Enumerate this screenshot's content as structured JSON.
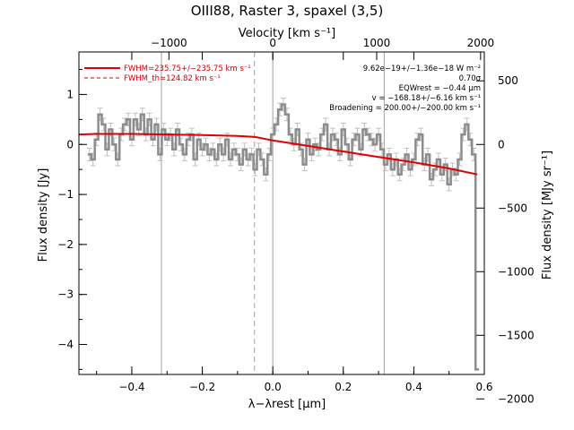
{
  "chart_data": {
    "type": "line",
    "title": "OIII88, Raster 3, spaxel (3,5)",
    "xlabel": "λ−λrest [μm]",
    "x2label": "Velocity [km s⁻¹]",
    "ylabel": "Flux density [Jy]",
    "y2label": "Flux density [MJy sr⁻¹]",
    "xlim": [
      -0.55,
      0.6
    ],
    "ylim": [
      -4.6,
      1.85
    ],
    "x_ticks": [
      "−0.4",
      "−0.2",
      "0.0",
      "0.2",
      "0.4",
      "0.6"
    ],
    "y_ticks": [
      "1",
      "0",
      "−1",
      "−2",
      "−3",
      "−4"
    ],
    "x2_ticks": [
      "−1000",
      "0",
      "1000",
      "2000"
    ],
    "y2_ticks": [
      "500",
      "0",
      "−500",
      "−1000",
      "−1500",
      "−2000"
    ],
    "legend_placement": "top-left",
    "legend": [
      "FWHM=235.75+/−235.75 km s⁻¹",
      "FWHM_th=124.82 km s⁻¹"
    ],
    "annotations": [
      "9.62e−19+/−1.36e−18 W m⁻²",
      "0.70σ",
      "EQWrest = −0.44 μm",
      "v = −168.18+/−6.16 km s⁻¹",
      "Broadening = 200.00+/−200.00 km s⁻¹"
    ],
    "vertical_lines": [
      -0.316,
      0.0,
      0.316
    ],
    "dashed_line": -0.052,
    "series": [
      {
        "name": "spectrum",
        "x": [
          -0.52,
          -0.51,
          -0.5,
          -0.49,
          -0.48,
          -0.47,
          -0.46,
          -0.45,
          -0.44,
          -0.43,
          -0.42,
          -0.41,
          -0.4,
          -0.39,
          -0.38,
          -0.37,
          -0.36,
          -0.35,
          -0.34,
          -0.33,
          -0.32,
          -0.31,
          -0.3,
          -0.29,
          -0.28,
          -0.27,
          -0.26,
          -0.25,
          -0.24,
          -0.23,
          -0.22,
          -0.21,
          -0.2,
          -0.19,
          -0.18,
          -0.17,
          -0.16,
          -0.15,
          -0.14,
          -0.13,
          -0.12,
          -0.11,
          -0.1,
          -0.09,
          -0.08,
          -0.07,
          -0.06,
          -0.05,
          -0.04,
          -0.03,
          -0.02,
          -0.01,
          0.0,
          0.01,
          0.02,
          0.03,
          0.04,
          0.05,
          0.06,
          0.07,
          0.08,
          0.09,
          0.1,
          0.11,
          0.12,
          0.13,
          0.14,
          0.15,
          0.16,
          0.17,
          0.18,
          0.19,
          0.2,
          0.21,
          0.22,
          0.23,
          0.24,
          0.25,
          0.26,
          0.27,
          0.28,
          0.29,
          0.3,
          0.31,
          0.32,
          0.33,
          0.34,
          0.35,
          0.36,
          0.37,
          0.38,
          0.39,
          0.4,
          0.41,
          0.42,
          0.43,
          0.44,
          0.45,
          0.46,
          0.47,
          0.48,
          0.49,
          0.5,
          0.51,
          0.52,
          0.53,
          0.54,
          0.55,
          0.56,
          0.57,
          0.58
        ],
        "y": [
          -0.2,
          -0.3,
          0.1,
          0.6,
          0.4,
          -0.1,
          0.3,
          0.0,
          -0.3,
          0.2,
          0.4,
          0.5,
          0.1,
          0.5,
          0.3,
          0.6,
          0.2,
          0.5,
          0.1,
          0.4,
          -0.2,
          0.3,
          0.1,
          0.2,
          -0.1,
          0.3,
          0.0,
          -0.2,
          0.1,
          0.2,
          -0.3,
          0.1,
          -0.1,
          0.0,
          -0.2,
          -0.1,
          -0.3,
          0.0,
          -0.2,
          0.1,
          -0.3,
          -0.1,
          -0.2,
          -0.4,
          -0.1,
          -0.3,
          -0.2,
          -0.5,
          -0.1,
          -0.3,
          -0.6,
          -0.2,
          0.2,
          0.4,
          0.7,
          0.8,
          0.6,
          0.2,
          0.0,
          0.3,
          -0.1,
          -0.4,
          0.1,
          -0.2,
          0.0,
          -0.1,
          0.2,
          0.4,
          -0.1,
          0.2,
          0.1,
          -0.2,
          0.3,
          0.0,
          -0.3,
          0.1,
          0.2,
          -0.1,
          0.3,
          0.2,
          0.1,
          0.0,
          0.2,
          -0.1,
          -0.4,
          -0.2,
          -0.5,
          -0.3,
          -0.6,
          -0.4,
          -0.2,
          -0.5,
          -0.3,
          0.1,
          0.2,
          -0.4,
          -0.2,
          -0.7,
          -0.5,
          -0.3,
          -0.6,
          -0.4,
          -0.8,
          -0.5,
          -0.6,
          -0.3,
          0.2,
          0.4,
          0.1,
          -0.2,
          -4.5
        ]
      },
      {
        "name": "fit",
        "x": [
          -0.55,
          -0.5,
          -0.4,
          -0.3,
          -0.2,
          -0.1,
          -0.05,
          0.0,
          0.1,
          0.2,
          0.3,
          0.4,
          0.5,
          0.58
        ],
        "y": [
          0.2,
          0.21,
          0.21,
          0.2,
          0.19,
          0.17,
          0.15,
          0.08,
          -0.03,
          -0.14,
          -0.25,
          -0.36,
          -0.48,
          -0.6
        ]
      }
    ]
  }
}
